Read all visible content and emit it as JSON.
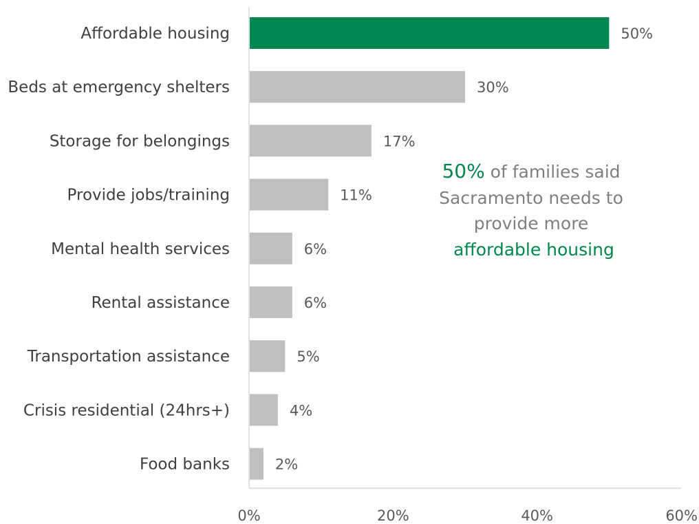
{
  "chart_data": {
    "type": "bar",
    "orientation": "horizontal",
    "title": "",
    "xlabel": "",
    "ylabel": "",
    "categories": [
      "Affordable housing",
      "Beds at emergency shelters",
      "Storage for belongings",
      "Provide jobs/training",
      "Mental health services",
      "Rental assistance",
      "Transportation assistance",
      "Crisis residential (24hrs+)",
      "Food banks"
    ],
    "values": [
      50,
      30,
      17,
      11,
      6,
      6,
      5,
      4,
      2
    ],
    "value_labels": [
      "50%",
      "30%",
      "17%",
      "11%",
      "6%",
      "6%",
      "5%",
      "4%",
      "2%"
    ],
    "xlim": [
      0,
      60
    ],
    "x_ticks": [
      0,
      20,
      40,
      60
    ],
    "x_tick_labels": [
      "0%",
      "20%",
      "40%",
      "60%"
    ],
    "grid": false,
    "legend": "none",
    "colors": {
      "highlight": "#00874f",
      "default": "#bfbfbf",
      "axis": "#d9d9d9"
    },
    "highlight_index": 0,
    "annotation": {
      "line1_highlight": "50%",
      "line1_rest": " of families said",
      "line2": "Sacramento needs to",
      "line3": "provide more",
      "line4_highlight": "affordable housing"
    }
  }
}
